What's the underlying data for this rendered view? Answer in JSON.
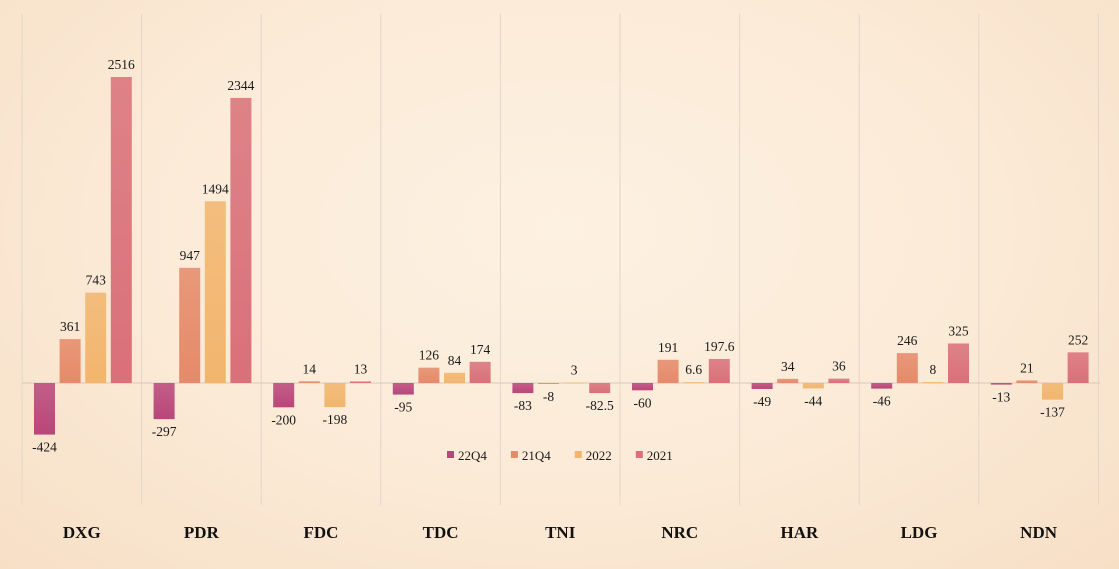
{
  "chart_data": {
    "type": "bar",
    "categories": [
      "DXG",
      "PDR",
      "FDC",
      "TDC",
      "TNI",
      "NRC",
      "HAR",
      "LDG",
      "NDN"
    ],
    "series": [
      {
        "name": "22Q4",
        "color": "#b9467a",
        "values": [
          -424,
          -297,
          -200,
          -95,
          -83,
          -60,
          -49,
          -46,
          -13
        ]
      },
      {
        "name": "21Q4",
        "color": "#e58a6a",
        "values": [
          361,
          947,
          14,
          126,
          -8,
          191,
          34,
          246,
          21
        ]
      },
      {
        "name": "2022",
        "color": "#f2b56e",
        "values": [
          743,
          1494,
          -198,
          84,
          3,
          6.6,
          -44,
          8,
          -137
        ]
      },
      {
        "name": "2021",
        "color": "#d9707a",
        "values": [
          2516,
          2344,
          13,
          174,
          -82.5,
          197.6,
          36,
          325,
          252
        ]
      }
    ],
    "labels": [
      [
        "-424",
        "361",
        "743",
        "2516"
      ],
      [
        "-297",
        "947",
        "1494",
        "2344"
      ],
      [
        "-200",
        "14",
        "-198",
        "13"
      ],
      [
        "-95",
        "126",
        "84",
        "174"
      ],
      [
        "-83",
        "-8",
        "3",
        "-82.5"
      ],
      [
        "-60",
        "191",
        "6.6",
        "197.6"
      ],
      [
        "-49",
        "34",
        "-44",
        "36"
      ],
      [
        "-46",
        "246",
        "8",
        "325"
      ],
      [
        "-13",
        "21",
        "-137",
        "252"
      ]
    ],
    "legend_position": "center, below zero line",
    "grid": "vertical category separators",
    "ylim": [
      -1000,
      2600
    ]
  }
}
